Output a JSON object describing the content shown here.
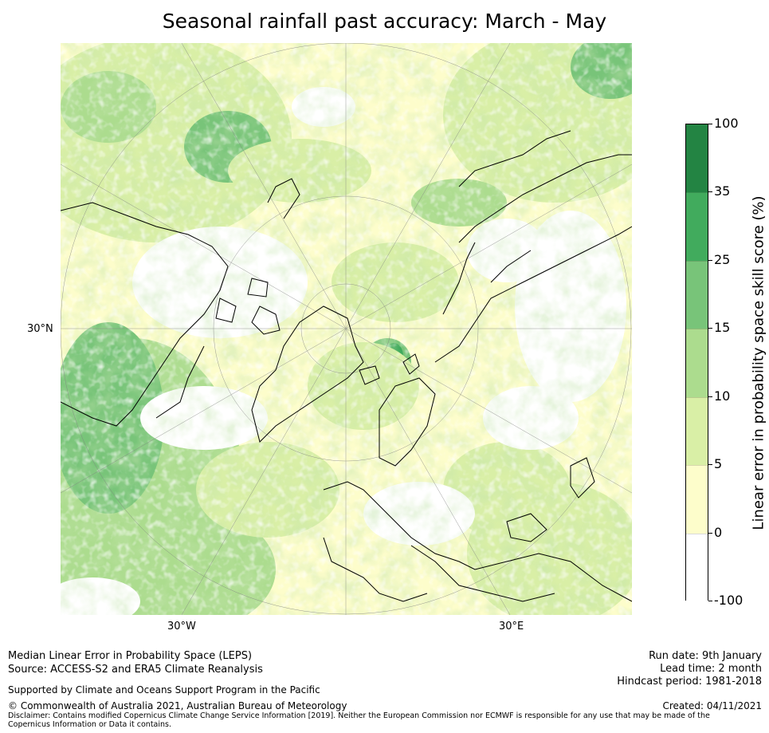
{
  "title": "Seasonal rainfall past accuracy: March - May",
  "map": {
    "projection": "north polar stereographic",
    "lat_labels": [
      "30°N"
    ],
    "lon_labels": [
      "30°W",
      "30°E"
    ],
    "colors": {
      "background": "#ffffff",
      "level_0_5": "#fdfdcb",
      "level_5_10": "#d9efa6",
      "level_10_15": "#acdc8e",
      "level_15_25": "#78c479",
      "level_25_35": "#41ab5d",
      "level_35_100": "#238443",
      "coastline": "#000000",
      "graticule": "#808080"
    }
  },
  "colorbar": {
    "title": "Linear error in probability space skill score (%)",
    "ticks": [
      "100",
      "35",
      "25",
      "15",
      "10",
      "5",
      "0",
      "-100"
    ],
    "segments": [
      "#238443",
      "#41ab5d",
      "#78c479",
      "#acdc8e",
      "#d9efa6",
      "#fdfdcb",
      "#ffffff"
    ]
  },
  "footer": {
    "line1": "Median Linear Error in Probability Space (LEPS)",
    "line2": "Source: ACCESS-S2 and ERA5 Climate Reanalysis",
    "support": "Supported by Climate and Oceans Support Program in the Pacific",
    "copyright": "© Commonwealth of Australia 2021, Australian Bureau of Meteorology",
    "disclaimer": "Disclaimer: Contains modified Copernicus Climate Change Service Information [2019]. Neither the European Commission nor ECMWF is responsible for any use that may be made of the Copernicus Information or Data it contains.",
    "run_date": "Run date: 9th January",
    "lead_time": "Lead time: 2 month",
    "hindcast": "Hindcast period: 1981-2018",
    "created": "Created: 04/11/2021"
  }
}
